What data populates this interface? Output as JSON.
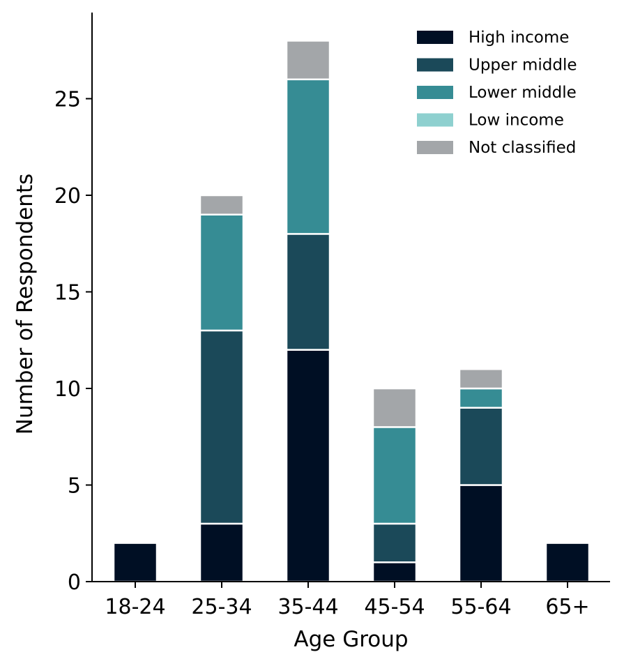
{
  "chart_data": {
    "type": "bar",
    "stacked": true,
    "title": "",
    "xlabel": "Age Group",
    "ylabel": "Number of Respondents",
    "categories": [
      "18-24",
      "25-34",
      "35-44",
      "45-54",
      "55-64",
      "65+"
    ],
    "series": [
      {
        "name": "High income",
        "color": "#000f24",
        "values": [
          2,
          3,
          12,
          1,
          5,
          2
        ]
      },
      {
        "name": "Upper middle",
        "color": "#1b4959",
        "values": [
          0,
          10,
          6,
          2,
          4,
          0
        ]
      },
      {
        "name": "Lower middle",
        "color": "#368c94",
        "values": [
          0,
          6,
          8,
          5,
          1,
          0
        ]
      },
      {
        "name": "Low income",
        "color": "#8ed0cf",
        "values": [
          0,
          0,
          0,
          0,
          0,
          0
        ]
      },
      {
        "name": "Not classified",
        "color": "#a3a6a9",
        "values": [
          0,
          1,
          2,
          2,
          1,
          0
        ]
      }
    ],
    "ylim": [
      0,
      29.4
    ],
    "yticks": [
      0,
      5,
      10,
      15,
      20,
      25
    ],
    "grid": false,
    "legend": "top-right"
  }
}
